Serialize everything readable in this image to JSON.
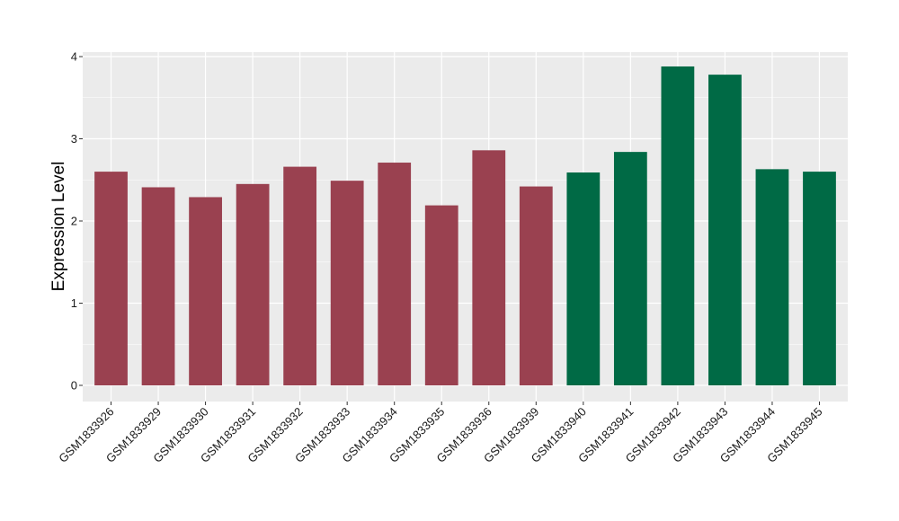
{
  "chart_data": {
    "type": "bar",
    "ylabel": "Expression Level",
    "xlabel": "",
    "ylim": [
      0,
      4.0
    ],
    "yticks": [
      0,
      1,
      2,
      3,
      4
    ],
    "grid": true,
    "legend": "none",
    "categories": [
      "GSM1833926",
      "GSM1833929",
      "GSM1833930",
      "GSM1833931",
      "GSM1833932",
      "GSM1833933",
      "GSM1833934",
      "GSM1833935",
      "GSM1833936",
      "GSM1833939",
      "GSM1833940",
      "GSM1833941",
      "GSM1833942",
      "GSM1833943",
      "GSM1833944",
      "GSM1833945"
    ],
    "values": [
      2.6,
      2.41,
      2.29,
      2.45,
      2.66,
      2.49,
      2.71,
      2.19,
      2.86,
      2.42,
      2.59,
      2.84,
      3.88,
      3.78,
      2.63,
      2.6
    ],
    "groups": [
      0,
      0,
      0,
      0,
      0,
      0,
      0,
      0,
      0,
      0,
      1,
      1,
      1,
      1,
      1,
      1
    ],
    "group_colors": [
      "#9a4150",
      "#006a45"
    ],
    "panel_color": "#ebebeb",
    "grid_color": "#ffffff"
  }
}
